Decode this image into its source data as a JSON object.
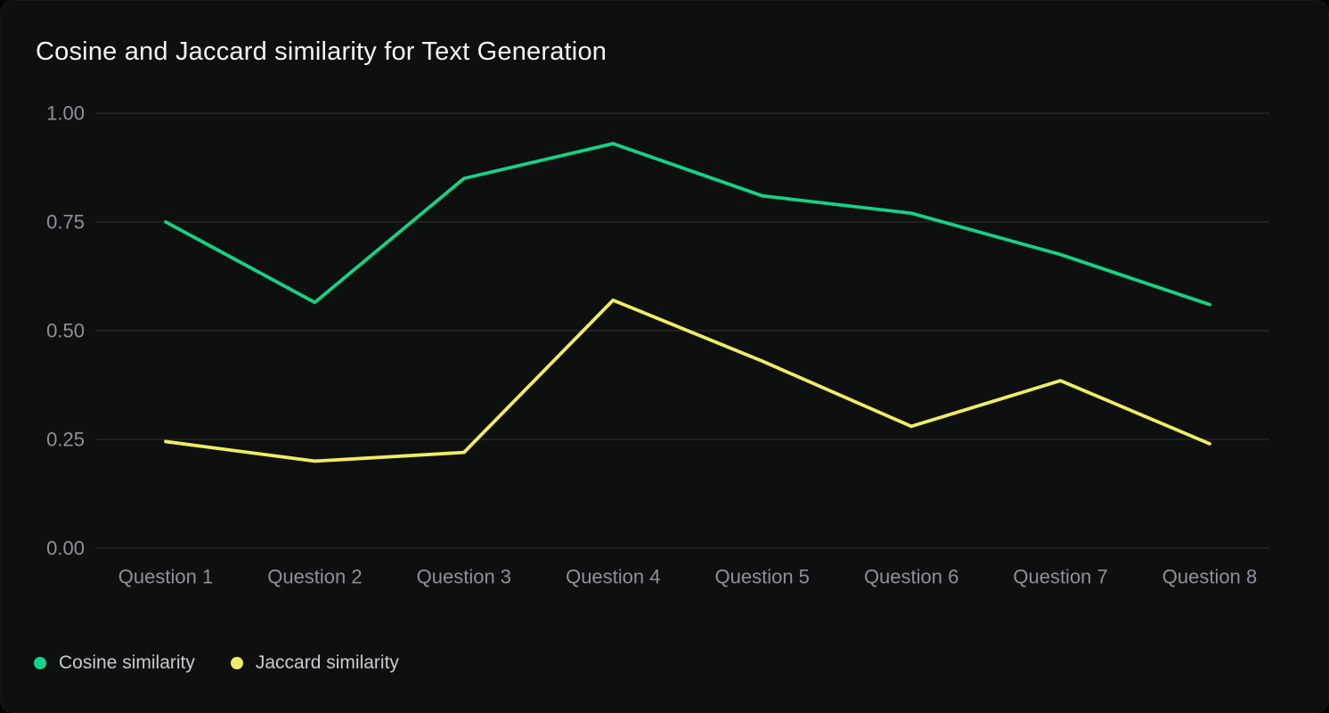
{
  "window": {
    "title": "Cosine and Jaccard similarity for Text Generation"
  },
  "theme": {
    "page_background": "#000000",
    "card_background": "#0e100f",
    "title_color": "#f4f4f4",
    "grid_color": "#2b2d2c",
    "tick_label_color": "#8d9199",
    "legend_text_color": "#c6cbd2",
    "cosine_color": "#15d287",
    "jaccard_color": "#f0ed62"
  },
  "chart_data": {
    "type": "line",
    "title": "Cosine and Jaccard similarity for Text Generation",
    "categories": [
      "Question 1",
      "Question 2",
      "Question 3",
      "Question 4",
      "Question 5",
      "Question 6",
      "Question 7",
      "Question 8"
    ],
    "series": [
      {
        "name": "Cosine similarity",
        "color": "#15d287",
        "values": [
          0.75,
          0.565,
          0.85,
          0.93,
          0.81,
          0.77,
          0.675,
          0.56
        ]
      },
      {
        "name": "Jaccard similarity",
        "color": "#f0ed62",
        "values": [
          0.245,
          0.2,
          0.22,
          0.57,
          0.43,
          0.28,
          0.385,
          0.24
        ]
      }
    ],
    "xlabel": "",
    "ylabel": "",
    "ylim": [
      0.0,
      1.0
    ],
    "yticks": [
      0.0,
      0.25,
      0.5,
      0.75,
      1.0
    ],
    "ytick_labels": [
      "0.00",
      "0.25",
      "0.50",
      "0.75",
      "1.00"
    ],
    "grid": true,
    "legend_position": "bottom-left",
    "markers": false
  }
}
